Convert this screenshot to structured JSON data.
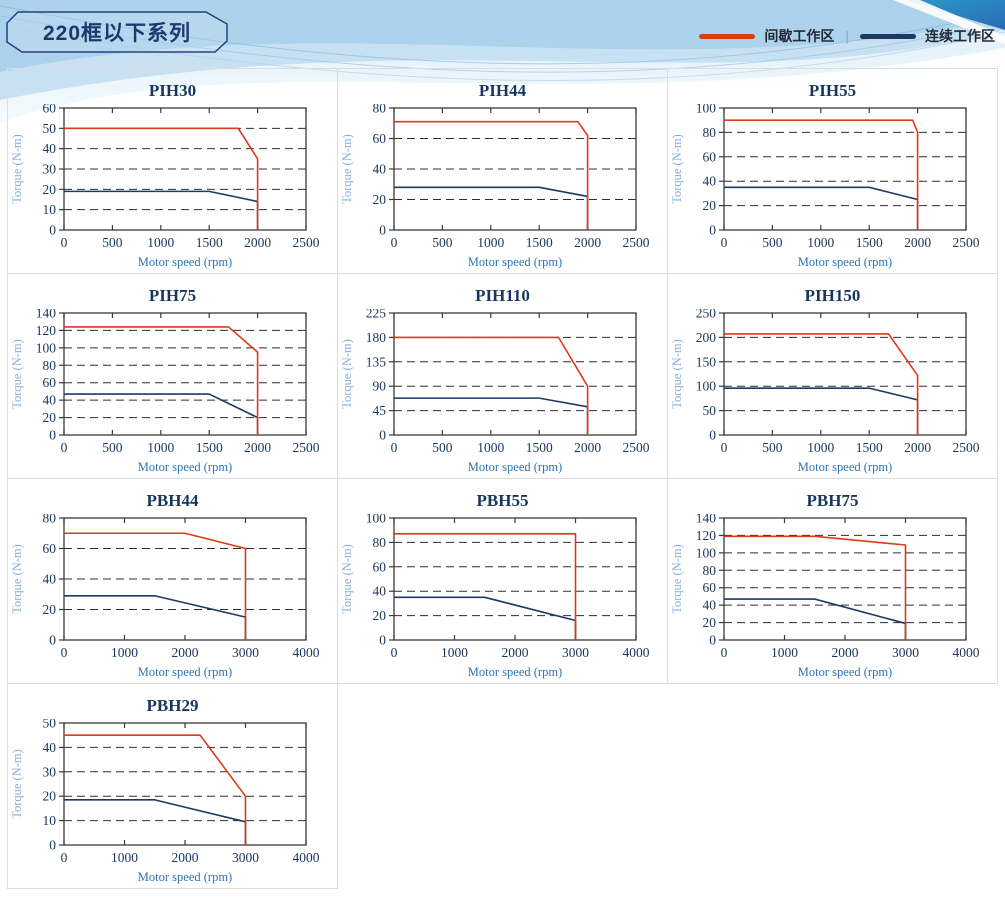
{
  "header": {
    "title": "220框以下系列"
  },
  "legend": {
    "intermittent_label": "间歇工作区",
    "separator": "|",
    "continuous_label": "连续工作区"
  },
  "colors": {
    "intermittent_red": "#dd3a17",
    "continuous_navy": "#1f3864",
    "tick_label": "#17365d",
    "x_axis_label": "#2e74b5",
    "y_axis_label": "#85afdd",
    "chart_title": "#17365d",
    "plot_border": "#3a3a3a",
    "grid_line": "#2f2f2f",
    "card_border": "#dcdcdc"
  },
  "chart_data": [
    {
      "type": "line",
      "title": "PIH30",
      "xlabel": "Motor speed (rpm)",
      "ylabel": "Torque (N-m)",
      "xlim": [
        0,
        2500
      ],
      "ylim": [
        0,
        60
      ],
      "x_ticks": [
        0,
        500,
        1000,
        1500,
        2000,
        2500
      ],
      "y_ticks": [
        0,
        10,
        20,
        30,
        40,
        50,
        60
      ],
      "series": [
        {
          "name": "间歇工作区",
          "color_key": "intermittent_red",
          "points": [
            [
              0,
              50
            ],
            [
              1800,
              50
            ],
            [
              2000,
              35
            ],
            [
              2000,
              0
            ]
          ]
        },
        {
          "name": "连续工作区",
          "color_key": "continuous_navy",
          "points": [
            [
              0,
              19
            ],
            [
              1500,
              19
            ],
            [
              2000,
              14
            ],
            [
              2000,
              0
            ]
          ]
        }
      ]
    },
    {
      "type": "line",
      "title": "PIH44",
      "xlabel": "Motor speed (rpm)",
      "ylabel": "Torque (N-m)",
      "xlim": [
        0,
        2500
      ],
      "ylim": [
        0,
        80
      ],
      "x_ticks": [
        0,
        500,
        1000,
        1500,
        2000,
        2500
      ],
      "y_ticks": [
        0,
        20,
        40,
        60,
        80
      ],
      "series": [
        {
          "name": "间歇工作区",
          "color_key": "intermittent_red",
          "points": [
            [
              0,
              71
            ],
            [
              1900,
              71
            ],
            [
              2000,
              62
            ],
            [
              2000,
              0
            ]
          ]
        },
        {
          "name": "连续工作区",
          "color_key": "continuous_navy",
          "points": [
            [
              0,
              28
            ],
            [
              1500,
              28
            ],
            [
              2000,
              22
            ],
            [
              2000,
              0
            ]
          ]
        }
      ]
    },
    {
      "type": "line",
      "title": "PIH55",
      "xlabel": "Motor speed (rpm)",
      "ylabel": "Torque (N-m)",
      "xlim": [
        0,
        2500
      ],
      "ylim": [
        0,
        100
      ],
      "x_ticks": [
        0,
        500,
        1000,
        1500,
        2000,
        2500
      ],
      "y_ticks": [
        0,
        20,
        40,
        60,
        80,
        100
      ],
      "series": [
        {
          "name": "间歇工作区",
          "color_key": "intermittent_red",
          "points": [
            [
              0,
              90
            ],
            [
              1950,
              90
            ],
            [
              2000,
              80
            ],
            [
              2000,
              0
            ]
          ]
        },
        {
          "name": "连续工作区",
          "color_key": "continuous_navy",
          "points": [
            [
              0,
              35
            ],
            [
              1500,
              35
            ],
            [
              2000,
              25
            ],
            [
              2000,
              0
            ]
          ]
        }
      ]
    },
    {
      "type": "line",
      "title": "PIH75",
      "xlabel": "Motor speed (rpm)",
      "ylabel": "Torque (N-m)",
      "xlim": [
        0,
        2500
      ],
      "ylim": [
        0,
        140
      ],
      "x_ticks": [
        0,
        500,
        1000,
        1500,
        2000,
        2500
      ],
      "y_ticks": [
        0,
        20,
        40,
        60,
        80,
        100,
        120,
        140
      ],
      "series": [
        {
          "name": "间歇工作区",
          "color_key": "intermittent_red",
          "points": [
            [
              0,
              124
            ],
            [
              1700,
              124
            ],
            [
              2000,
              95
            ],
            [
              2000,
              0
            ]
          ]
        },
        {
          "name": "连续工作区",
          "color_key": "continuous_navy",
          "points": [
            [
              0,
              47
            ],
            [
              1500,
              47
            ],
            [
              2000,
              20
            ],
            [
              2000,
              0
            ]
          ]
        }
      ]
    },
    {
      "type": "line",
      "title": "PIH110",
      "xlabel": "Motor speed (rpm)",
      "ylabel": "Torque (N-m)",
      "xlim": [
        0,
        2500
      ],
      "ylim": [
        0,
        225
      ],
      "x_ticks": [
        0,
        500,
        1000,
        1500,
        2000,
        2500
      ],
      "y_ticks": [
        0,
        45,
        90,
        135,
        180,
        225
      ],
      "series": [
        {
          "name": "间歇工作区",
          "color_key": "intermittent_red",
          "points": [
            [
              0,
              180
            ],
            [
              1700,
              180
            ],
            [
              2000,
              90
            ],
            [
              2000,
              0
            ]
          ]
        },
        {
          "name": "连续工作区",
          "color_key": "continuous_navy",
          "points": [
            [
              0,
              68
            ],
            [
              1500,
              68
            ],
            [
              2000,
              52
            ],
            [
              2000,
              0
            ]
          ]
        }
      ]
    },
    {
      "type": "line",
      "title": "PIH150",
      "xlabel": "Motor speed (rpm)",
      "ylabel": "Torque (N-m)",
      "xlim": [
        0,
        2500
      ],
      "ylim": [
        0,
        250
      ],
      "x_ticks": [
        0,
        500,
        1000,
        1500,
        2000,
        2500
      ],
      "y_ticks": [
        0,
        50,
        100,
        150,
        200,
        250
      ],
      "series": [
        {
          "name": "间歇工作区",
          "color_key": "intermittent_red",
          "points": [
            [
              0,
              207
            ],
            [
              1700,
              207
            ],
            [
              2000,
              122
            ],
            [
              2000,
              0
            ]
          ]
        },
        {
          "name": "连续工作区",
          "color_key": "continuous_navy",
          "points": [
            [
              0,
              96
            ],
            [
              1500,
              96
            ],
            [
              2000,
              72
            ],
            [
              2000,
              0
            ]
          ]
        }
      ]
    },
    {
      "type": "line",
      "title": "PBH44",
      "xlabel": "Motor speed (rpm)",
      "ylabel": "Torque (N-m)",
      "xlim": [
        0,
        4000
      ],
      "ylim": [
        0,
        80
      ],
      "x_ticks": [
        0,
        1000,
        2000,
        3000,
        4000
      ],
      "y_ticks": [
        0,
        20,
        40,
        60,
        80
      ],
      "series": [
        {
          "name": "间歇工作区",
          "color_key": "intermittent_red",
          "points": [
            [
              0,
              70
            ],
            [
              2000,
              70
            ],
            [
              3000,
              60
            ],
            [
              3000,
              0
            ]
          ]
        },
        {
          "name": "连续工作区",
          "color_key": "continuous_navy",
          "points": [
            [
              0,
              29
            ],
            [
              1500,
              29
            ],
            [
              3000,
              15
            ],
            [
              3000,
              0
            ]
          ]
        }
      ]
    },
    {
      "type": "line",
      "title": "PBH55",
      "xlabel": "Motor speed (rpm)",
      "ylabel": "Torque (N-m)",
      "xlim": [
        0,
        4000
      ],
      "ylim": [
        0,
        100
      ],
      "x_ticks": [
        0,
        1000,
        2000,
        3000,
        4000
      ],
      "y_ticks": [
        0,
        20,
        40,
        60,
        80,
        100
      ],
      "series": [
        {
          "name": "间歇工作区",
          "color_key": "intermittent_red",
          "points": [
            [
              0,
              87
            ],
            [
              3000,
              87
            ],
            [
              3000,
              0
            ]
          ]
        },
        {
          "name": "连续工作区",
          "color_key": "continuous_navy",
          "points": [
            [
              0,
              35
            ],
            [
              1500,
              35
            ],
            [
              3000,
              16
            ],
            [
              3000,
              0
            ]
          ]
        }
      ]
    },
    {
      "type": "line",
      "title": "PBH75",
      "xlabel": "Motor speed (rpm)",
      "ylabel": "Torque (N-m)",
      "xlim": [
        0,
        4000
      ],
      "ylim": [
        0,
        140
      ],
      "x_ticks": [
        0,
        1000,
        2000,
        3000,
        4000
      ],
      "y_ticks": [
        0,
        20,
        40,
        60,
        80,
        100,
        120,
        140
      ],
      "series": [
        {
          "name": "间歇工作区",
          "color_key": "intermittent_red",
          "points": [
            [
              0,
              119
            ],
            [
              1500,
              119
            ],
            [
              3000,
              109
            ],
            [
              3000,
              0
            ]
          ]
        },
        {
          "name": "连续工作区",
          "color_key": "continuous_navy",
          "points": [
            [
              0,
              47
            ],
            [
              1500,
              47
            ],
            [
              3000,
              19
            ],
            [
              3000,
              0
            ]
          ]
        }
      ]
    },
    {
      "type": "line",
      "title": "PBH29",
      "xlabel": "Motor speed (rpm)",
      "ylabel": "Torque (N-m)",
      "xlim": [
        0,
        4000
      ],
      "ylim": [
        0,
        50
      ],
      "x_ticks": [
        0,
        1000,
        2000,
        3000,
        4000
      ],
      "y_ticks": [
        0,
        10,
        20,
        30,
        40,
        50
      ],
      "series": [
        {
          "name": "间歇工作区",
          "color_key": "intermittent_red",
          "points": [
            [
              0,
              45
            ],
            [
              2250,
              45
            ],
            [
              3000,
              20
            ],
            [
              3000,
              0
            ]
          ]
        },
        {
          "name": "连续工作区",
          "color_key": "continuous_navy",
          "points": [
            [
              0,
              18.5
            ],
            [
              1500,
              18.5
            ],
            [
              3000,
              9.5
            ],
            [
              3000,
              0
            ]
          ]
        }
      ]
    }
  ]
}
